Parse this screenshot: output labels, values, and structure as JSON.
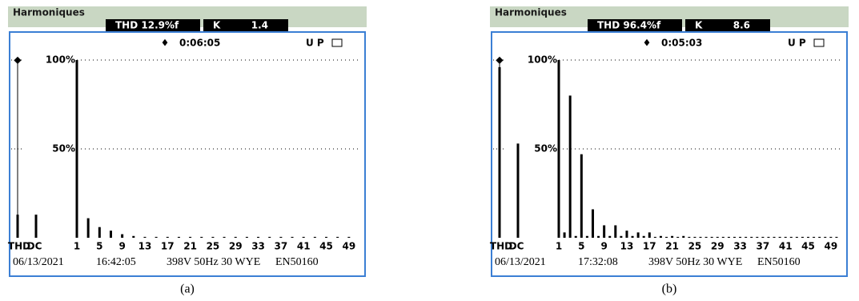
{
  "chart_data": [
    {
      "type": "bar",
      "title": "Harmoniques",
      "thd": "THD 12.9%f",
      "k_label": "K",
      "k_value": "1.4",
      "timer": "0:06:05",
      "status": "U P",
      "categories": [
        "THD",
        "DC",
        "1",
        null,
        null,
        null,
        "5",
        null,
        null,
        null,
        "9",
        null,
        null,
        null,
        "13",
        null,
        null,
        null,
        "17",
        null,
        null,
        null,
        "21",
        null,
        null,
        null,
        "25",
        null,
        null,
        null,
        "29",
        null,
        null,
        null,
        "33",
        null,
        null,
        null,
        "37",
        null,
        null,
        null,
        "41",
        null,
        null,
        null,
        "45",
        null,
        null,
        null,
        "49",
        null
      ],
      "values": [
        13,
        13,
        100,
        0,
        11,
        0,
        6,
        0,
        4,
        0,
        2,
        0,
        1,
        0,
        0.5,
        0,
        0.5,
        0,
        0.5,
        0,
        0.5,
        0,
        0.5,
        0,
        0.5,
        0,
        0.5,
        0,
        0.5,
        0,
        0.5,
        0,
        0.5,
        0,
        0.5,
        0,
        0.5,
        0,
        0.5,
        0,
        0.5,
        0,
        0.5,
        0,
        0.5,
        0,
        0.5,
        0,
        0.5,
        0,
        0.5,
        0
      ],
      "color": "#000000",
      "ylim": [
        0,
        100
      ],
      "yticks": [
        {
          "value": 50,
          "label": "50%"
        },
        {
          "value": 100,
          "label": "100%"
        }
      ],
      "grid": true,
      "footer": [
        "06/13/2021",
        "16:42:05",
        "398V 50Hz 30 WYE",
        "EN50160"
      ],
      "caption": "(a)"
    },
    {
      "type": "bar",
      "title": "Harmoniques",
      "thd": "THD 96.4%f",
      "k_label": "K",
      "k_value": "8.6",
      "timer": "0:05:03",
      "status": "U P",
      "categories": [
        "THD",
        "DC",
        "1",
        null,
        null,
        null,
        "5",
        null,
        null,
        null,
        "9",
        null,
        null,
        null,
        "13",
        null,
        null,
        null,
        "17",
        null,
        null,
        null,
        "21",
        null,
        null,
        null,
        "25",
        null,
        null,
        null,
        "29",
        null,
        null,
        null,
        "33",
        null,
        null,
        null,
        "37",
        null,
        null,
        null,
        "41",
        null,
        null,
        null,
        "45",
        null,
        null,
        null,
        "49",
        null
      ],
      "values": [
        96,
        53,
        100,
        3,
        80,
        1,
        47,
        1,
        16,
        1,
        7,
        1,
        7,
        1,
        4,
        1,
        3,
        1,
        3,
        0.5,
        1,
        0.5,
        1,
        0.5,
        1,
        0.5,
        0.5,
        0.5,
        0.5,
        0.5,
        0.5,
        0.5,
        0.5,
        0.5,
        0.5,
        0.5,
        0.5,
        0.5,
        0.5,
        0.5,
        0.5,
        0.5,
        0.5,
        0.5,
        0.5,
        0.5,
        0.5,
        0.5,
        0.5,
        0.5,
        0.5,
        0.5
      ],
      "color": "#000000",
      "ylim": [
        0,
        100
      ],
      "yticks": [
        {
          "value": 50,
          "label": "50%"
        },
        {
          "value": 100,
          "label": "100%"
        }
      ],
      "grid": true,
      "footer": [
        "06/13/2021",
        "17:32:08",
        "398V 50Hz 30 WYE",
        "EN50160"
      ],
      "caption": "(b)"
    }
  ]
}
